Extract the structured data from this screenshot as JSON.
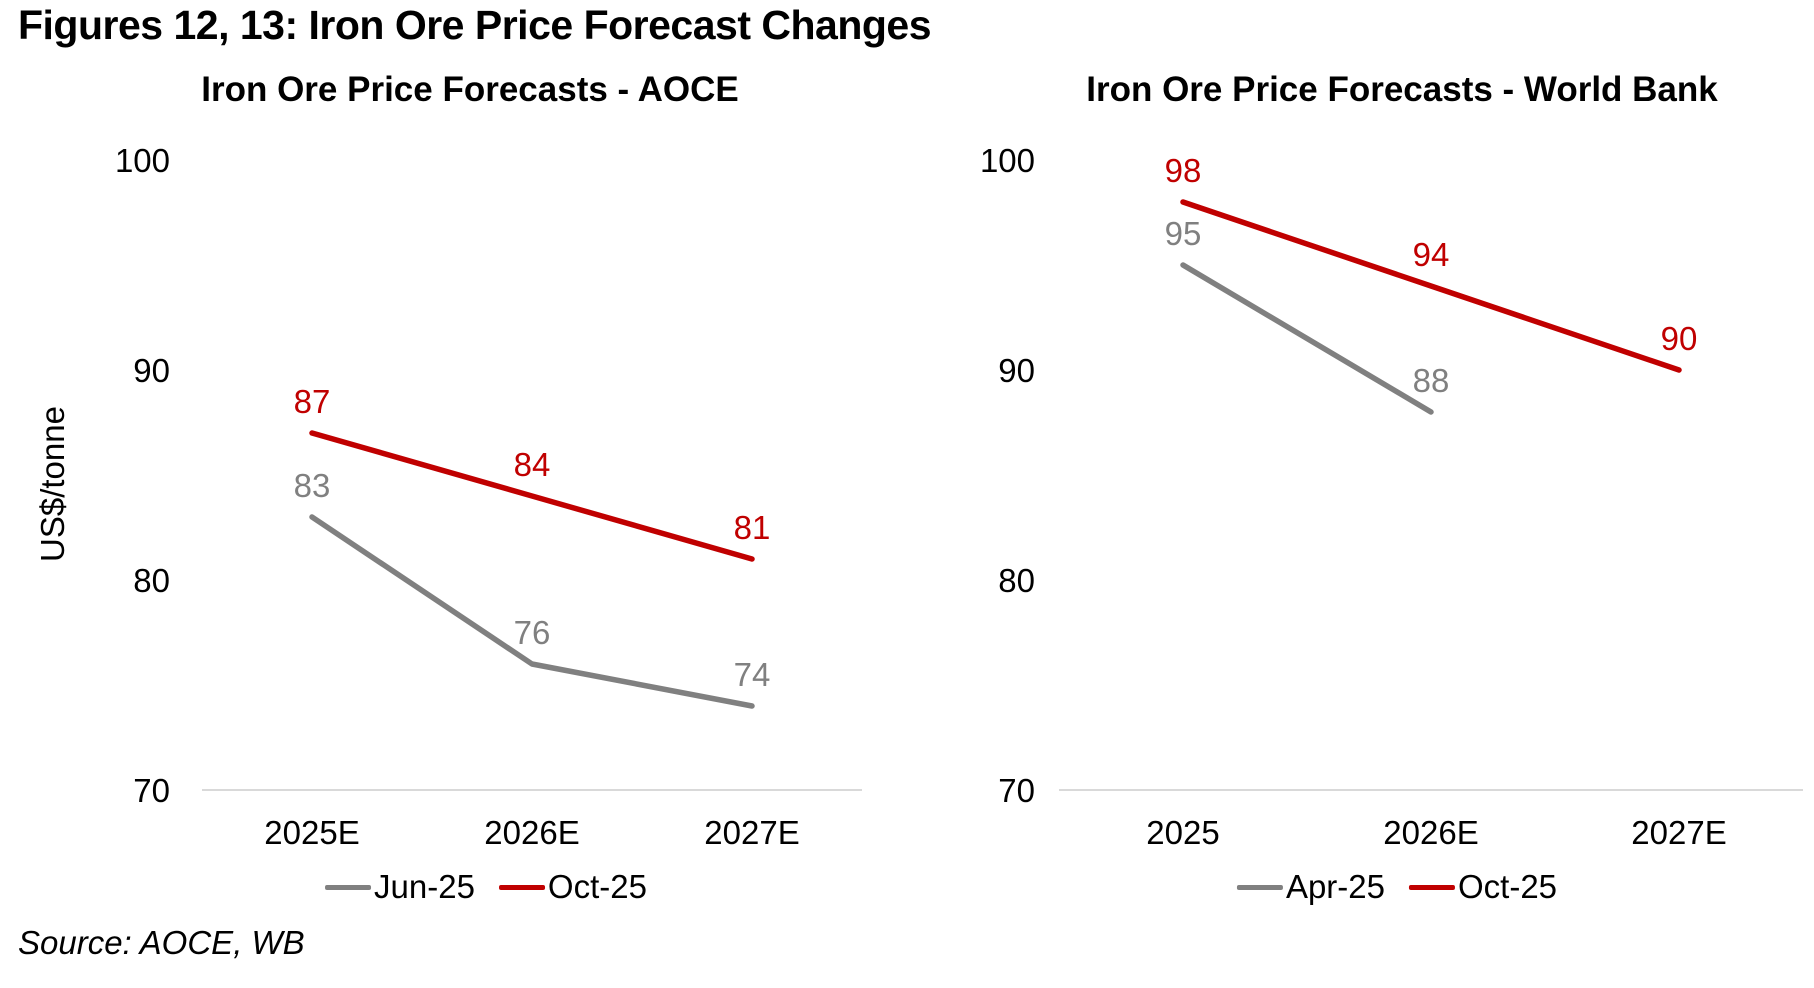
{
  "figure": {
    "title": "Figures 12, 13: Iron Ore Price Forecast Changes",
    "source": "Source: AOCE, WB"
  },
  "colors": {
    "red": "#c00000",
    "gray": "#808080",
    "axis": "#d9d9d9",
    "text": "#000000"
  },
  "chart_data": [
    {
      "type": "line",
      "title": "Iron Ore Price Forecasts - AOCE",
      "ylabel": "US$/tonne",
      "categories": [
        "2025E",
        "2026E",
        "2027E"
      ],
      "series": [
        {
          "name": "Jun-25",
          "color_key": "gray",
          "values": [
            83,
            76,
            74
          ]
        },
        {
          "name": "Oct-25",
          "color_key": "red",
          "values": [
            87,
            84,
            81
          ]
        }
      ],
      "yticks": [
        100,
        90,
        80,
        70
      ],
      "ylim": [
        70,
        100
      ],
      "grid": false,
      "legend_position": "bottom",
      "data_labels": true
    },
    {
      "type": "line",
      "title": "Iron Ore Price Forecasts - World Bank",
      "ylabel": "",
      "categories": [
        "2025",
        "2026E",
        "2027E"
      ],
      "series": [
        {
          "name": "Apr-25",
          "color_key": "gray",
          "values": [
            95,
            88,
            null
          ]
        },
        {
          "name": "Oct-25",
          "color_key": "red",
          "values": [
            98,
            94,
            90
          ]
        }
      ],
      "yticks": [
        100,
        90,
        80,
        70
      ],
      "ylim": [
        70,
        100
      ],
      "grid": false,
      "legend_position": "bottom",
      "data_labels": true
    }
  ]
}
